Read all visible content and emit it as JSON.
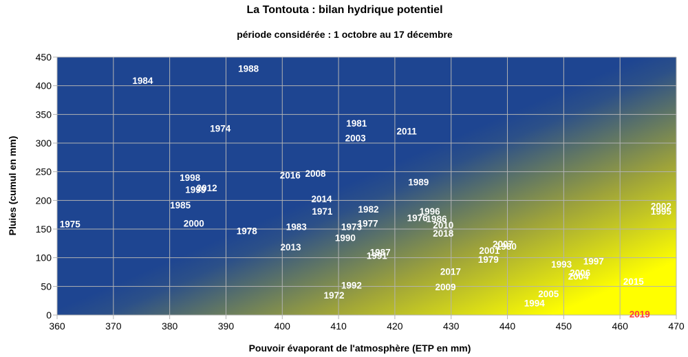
{
  "chart_data": {
    "type": "scatter",
    "title": "La Tontouta : bilan hydrique potentiel",
    "subtitle": "période considérée : 1 octobre au 17 décembre",
    "xlabel": "Pouvoir évaporant de l'atmosphère (ETP en mm)",
    "ylabel": "Pluies (cumul en mm)",
    "xlim": [
      360,
      470
    ],
    "ylim": [
      0,
      450
    ],
    "xticks": [
      "360",
      "370",
      "380",
      "390",
      "400",
      "410",
      "420",
      "430",
      "440",
      "450",
      "460",
      "470"
    ],
    "yticks": [
      "0",
      "50",
      "100",
      "150",
      "200",
      "250",
      "300",
      "350",
      "400",
      "450"
    ],
    "grid": true,
    "background": "gradient: blue (top-left) to yellow (bottom-right)",
    "colors": {
      "point_label": "#ffffff",
      "highlight": "#ff3b3b",
      "bg_blue": "#1e4591",
      "bg_yellow": "#ffff00"
    },
    "points": [
      {
        "label": "1975",
        "x": 362.3,
        "y": 159
      },
      {
        "label": "1984",
        "x": 375.2,
        "y": 409
      },
      {
        "label": "1988",
        "x": 394.0,
        "y": 430
      },
      {
        "label": "1974",
        "x": 389.0,
        "y": 326
      },
      {
        "label": "1998",
        "x": 383.6,
        "y": 240
      },
      {
        "label": "1999",
        "x": 384.6,
        "y": 219
      },
      {
        "label": "2012",
        "x": 386.6,
        "y": 222
      },
      {
        "label": "1985",
        "x": 381.9,
        "y": 192
      },
      {
        "label": "2000",
        "x": 384.3,
        "y": 160
      },
      {
        "label": "1978",
        "x": 393.7,
        "y": 147
      },
      {
        "label": "2016",
        "x": 401.4,
        "y": 244
      },
      {
        "label": "2008",
        "x": 405.9,
        "y": 247
      },
      {
        "label": "2014",
        "x": 407.0,
        "y": 203
      },
      {
        "label": "1971",
        "x": 407.1,
        "y": 181
      },
      {
        "label": "1983",
        "x": 402.5,
        "y": 154
      },
      {
        "label": "2013",
        "x": 401.5,
        "y": 119
      },
      {
        "label": "1981",
        "x": 413.2,
        "y": 335
      },
      {
        "label": "2003",
        "x": 413.0,
        "y": 309
      },
      {
        "label": "2011",
        "x": 422.1,
        "y": 321
      },
      {
        "label": "1989",
        "x": 424.2,
        "y": 232
      },
      {
        "label": "1982",
        "x": 415.3,
        "y": 185
      },
      {
        "label": "1973",
        "x": 412.3,
        "y": 154
      },
      {
        "label": "1977",
        "x": 415.2,
        "y": 160
      },
      {
        "label": "1990",
        "x": 411.2,
        "y": 135
      },
      {
        "label": "1987",
        "x": 417.4,
        "y": 110
      },
      {
        "label": "1991",
        "x": 416.8,
        "y": 104
      },
      {
        "label": "1996",
        "x": 426.2,
        "y": 181
      },
      {
        "label": "1976",
        "x": 424.0,
        "y": 170
      },
      {
        "label": "1986",
        "x": 427.4,
        "y": 168
      },
      {
        "label": "2010",
        "x": 428.6,
        "y": 157
      },
      {
        "label": "2018",
        "x": 428.6,
        "y": 143
      },
      {
        "label": "1992",
        "x": 412.3,
        "y": 52
      },
      {
        "label": "1972",
        "x": 409.2,
        "y": 35
      },
      {
        "label": "2017",
        "x": 429.9,
        "y": 76
      },
      {
        "label": "2009",
        "x": 429.0,
        "y": 49
      },
      {
        "label": "2007",
        "x": 439.2,
        "y": 124
      },
      {
        "label": "2001",
        "x": 436.8,
        "y": 113
      },
      {
        "label": "1980",
        "x": 439.8,
        "y": 120
      },
      {
        "label": "1979",
        "x": 436.6,
        "y": 97
      },
      {
        "label": "1993",
        "x": 449.6,
        "y": 89
      },
      {
        "label": "1997",
        "x": 455.3,
        "y": 94
      },
      {
        "label": "2006",
        "x": 452.9,
        "y": 74
      },
      {
        "label": "2004",
        "x": 452.6,
        "y": 68
      },
      {
        "label": "2005",
        "x": 447.3,
        "y": 37
      },
      {
        "label": "1994",
        "x": 444.8,
        "y": 21
      },
      {
        "label": "2015",
        "x": 462.4,
        "y": 59
      },
      {
        "label": "2002",
        "x": 467.3,
        "y": 190
      },
      {
        "label": "1995",
        "x": 467.3,
        "y": 181
      },
      {
        "label": "2019",
        "x": 463.5,
        "y": 2,
        "highlight": true
      }
    ]
  }
}
